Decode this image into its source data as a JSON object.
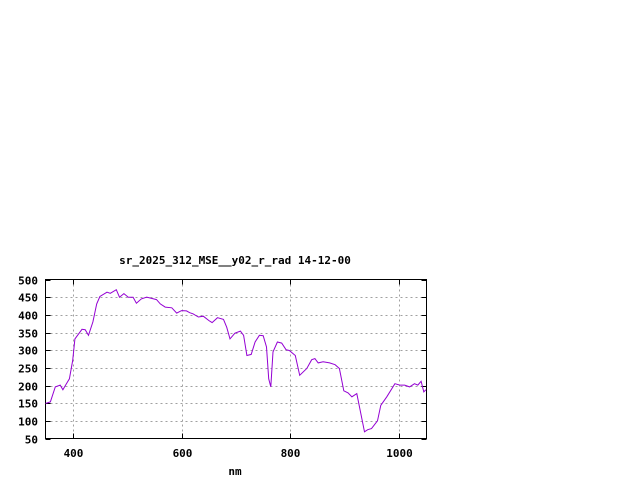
{
  "chart_data": {
    "type": "line",
    "title": "sr_2025_312_MSE__y02_r_rad 14-12-00",
    "xlabel": "nm",
    "ylabel": "",
    "xlim": [
      350,
      1050
    ],
    "ylim": [
      50,
      500
    ],
    "xticks": [
      400,
      600,
      800,
      1000
    ],
    "yticks": [
      50,
      100,
      150,
      200,
      250,
      300,
      350,
      400,
      450,
      500
    ],
    "grid": true,
    "line_color": "#9400d3",
    "series": [
      {
        "x": [
          350,
          359,
          368,
          377,
          382,
          387,
          394,
          400,
          404,
          417,
          423,
          429,
          437,
          444,
          450,
          463,
          469,
          480,
          486,
          494,
          502,
          511,
          517,
          526,
          536,
          554,
          561,
          570,
          582,
          591,
          600,
          609,
          615,
          621,
          631,
          640,
          650,
          656,
          666,
          677,
          683,
          689,
          698,
          708,
          714,
          720,
          728,
          735,
          743,
          750,
          756,
          760,
          764,
          768,
          776,
          784,
          792,
          798,
          809,
          817,
          830,
          839,
          845,
          851,
          860,
          872,
          882,
          890,
          898,
          906,
          913,
          922,
          936,
          942,
          949,
          960,
          966,
          977,
          992,
          1001,
          1010,
          1019,
          1028,
          1034,
          1040,
          1045,
          1049
        ],
        "y": [
          149,
          154,
          196,
          201,
          188,
          201,
          219,
          271,
          332,
          359,
          358,
          342,
          380,
          431,
          452,
          464,
          461,
          471,
          450,
          460,
          450,
          450,
          433,
          445,
          450,
          443,
          431,
          422,
          420,
          405,
          412,
          411,
          406,
          403,
          394,
          396,
          384,
          378,
          392,
          387,
          365,
          332,
          348,
          354,
          342,
          285,
          288,
          323,
          342,
          341,
          309,
          219,
          196,
          295,
          323,
          320,
          301,
          299,
          285,
          229,
          248,
          273,
          276,
          264,
          267,
          264,
          259,
          248,
          185,
          179,
          168,
          177,
          69,
          75,
          78,
          100,
          144,
          168,
          205,
          201,
          201,
          196,
          205,
          201,
          212,
          182,
          188
        ]
      }
    ]
  }
}
